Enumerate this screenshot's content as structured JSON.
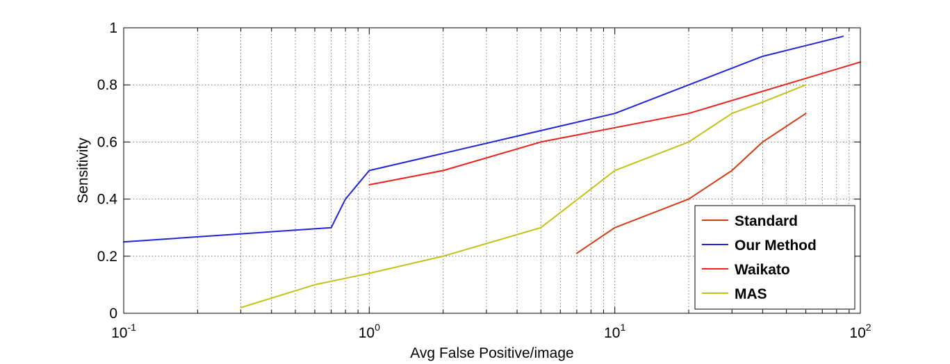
{
  "chart_data": {
    "type": "line",
    "xscale": "log",
    "xlim": [
      0.1,
      100
    ],
    "ylim": [
      0,
      1
    ],
    "xlabel": "Avg False Positive/image",
    "ylabel": "Sensitivity",
    "grid": true,
    "legend_position": "bottom-right",
    "x_ticks": [
      {
        "value": 0.1,
        "base": "10",
        "exp": "-1"
      },
      {
        "value": 1,
        "base": "10",
        "exp": "0"
      },
      {
        "value": 10,
        "base": "10",
        "exp": "1"
      },
      {
        "value": 100,
        "base": "10",
        "exp": "2"
      }
    ],
    "y_ticks": [
      {
        "value": 0,
        "label": "0"
      },
      {
        "value": 0.2,
        "label": "0.2"
      },
      {
        "value": 0.4,
        "label": "0.4"
      },
      {
        "value": 0.6,
        "label": "0.6"
      },
      {
        "value": 0.8,
        "label": "0.8"
      },
      {
        "value": 1,
        "label": "1"
      }
    ],
    "series": [
      {
        "name": "Standard",
        "color": "#d43a14",
        "x": [
          7,
          10,
          20,
          30,
          40,
          60
        ],
        "y": [
          0.21,
          0.3,
          0.4,
          0.5,
          0.6,
          0.7
        ]
      },
      {
        "name": "Our Method",
        "color": "#1f24d6",
        "x": [
          0.1,
          0.7,
          0.8,
          1,
          2,
          5,
          10,
          20,
          40,
          85
        ],
        "y": [
          0.25,
          0.3,
          0.4,
          0.5,
          0.56,
          0.64,
          0.7,
          0.8,
          0.9,
          0.97
        ]
      },
      {
        "name": "Waikato",
        "color": "#e8221a",
        "x": [
          1,
          2,
          5,
          10,
          20,
          100
        ],
        "y": [
          0.45,
          0.5,
          0.6,
          0.65,
          0.7,
          0.88
        ]
      },
      {
        "name": "MAS",
        "color": "#c2c21a",
        "x": [
          0.3,
          0.6,
          1,
          2,
          5,
          10,
          20,
          30,
          40,
          60
        ],
        "y": [
          0.02,
          0.1,
          0.14,
          0.2,
          0.3,
          0.5,
          0.6,
          0.7,
          0.74,
          0.8
        ]
      }
    ]
  }
}
